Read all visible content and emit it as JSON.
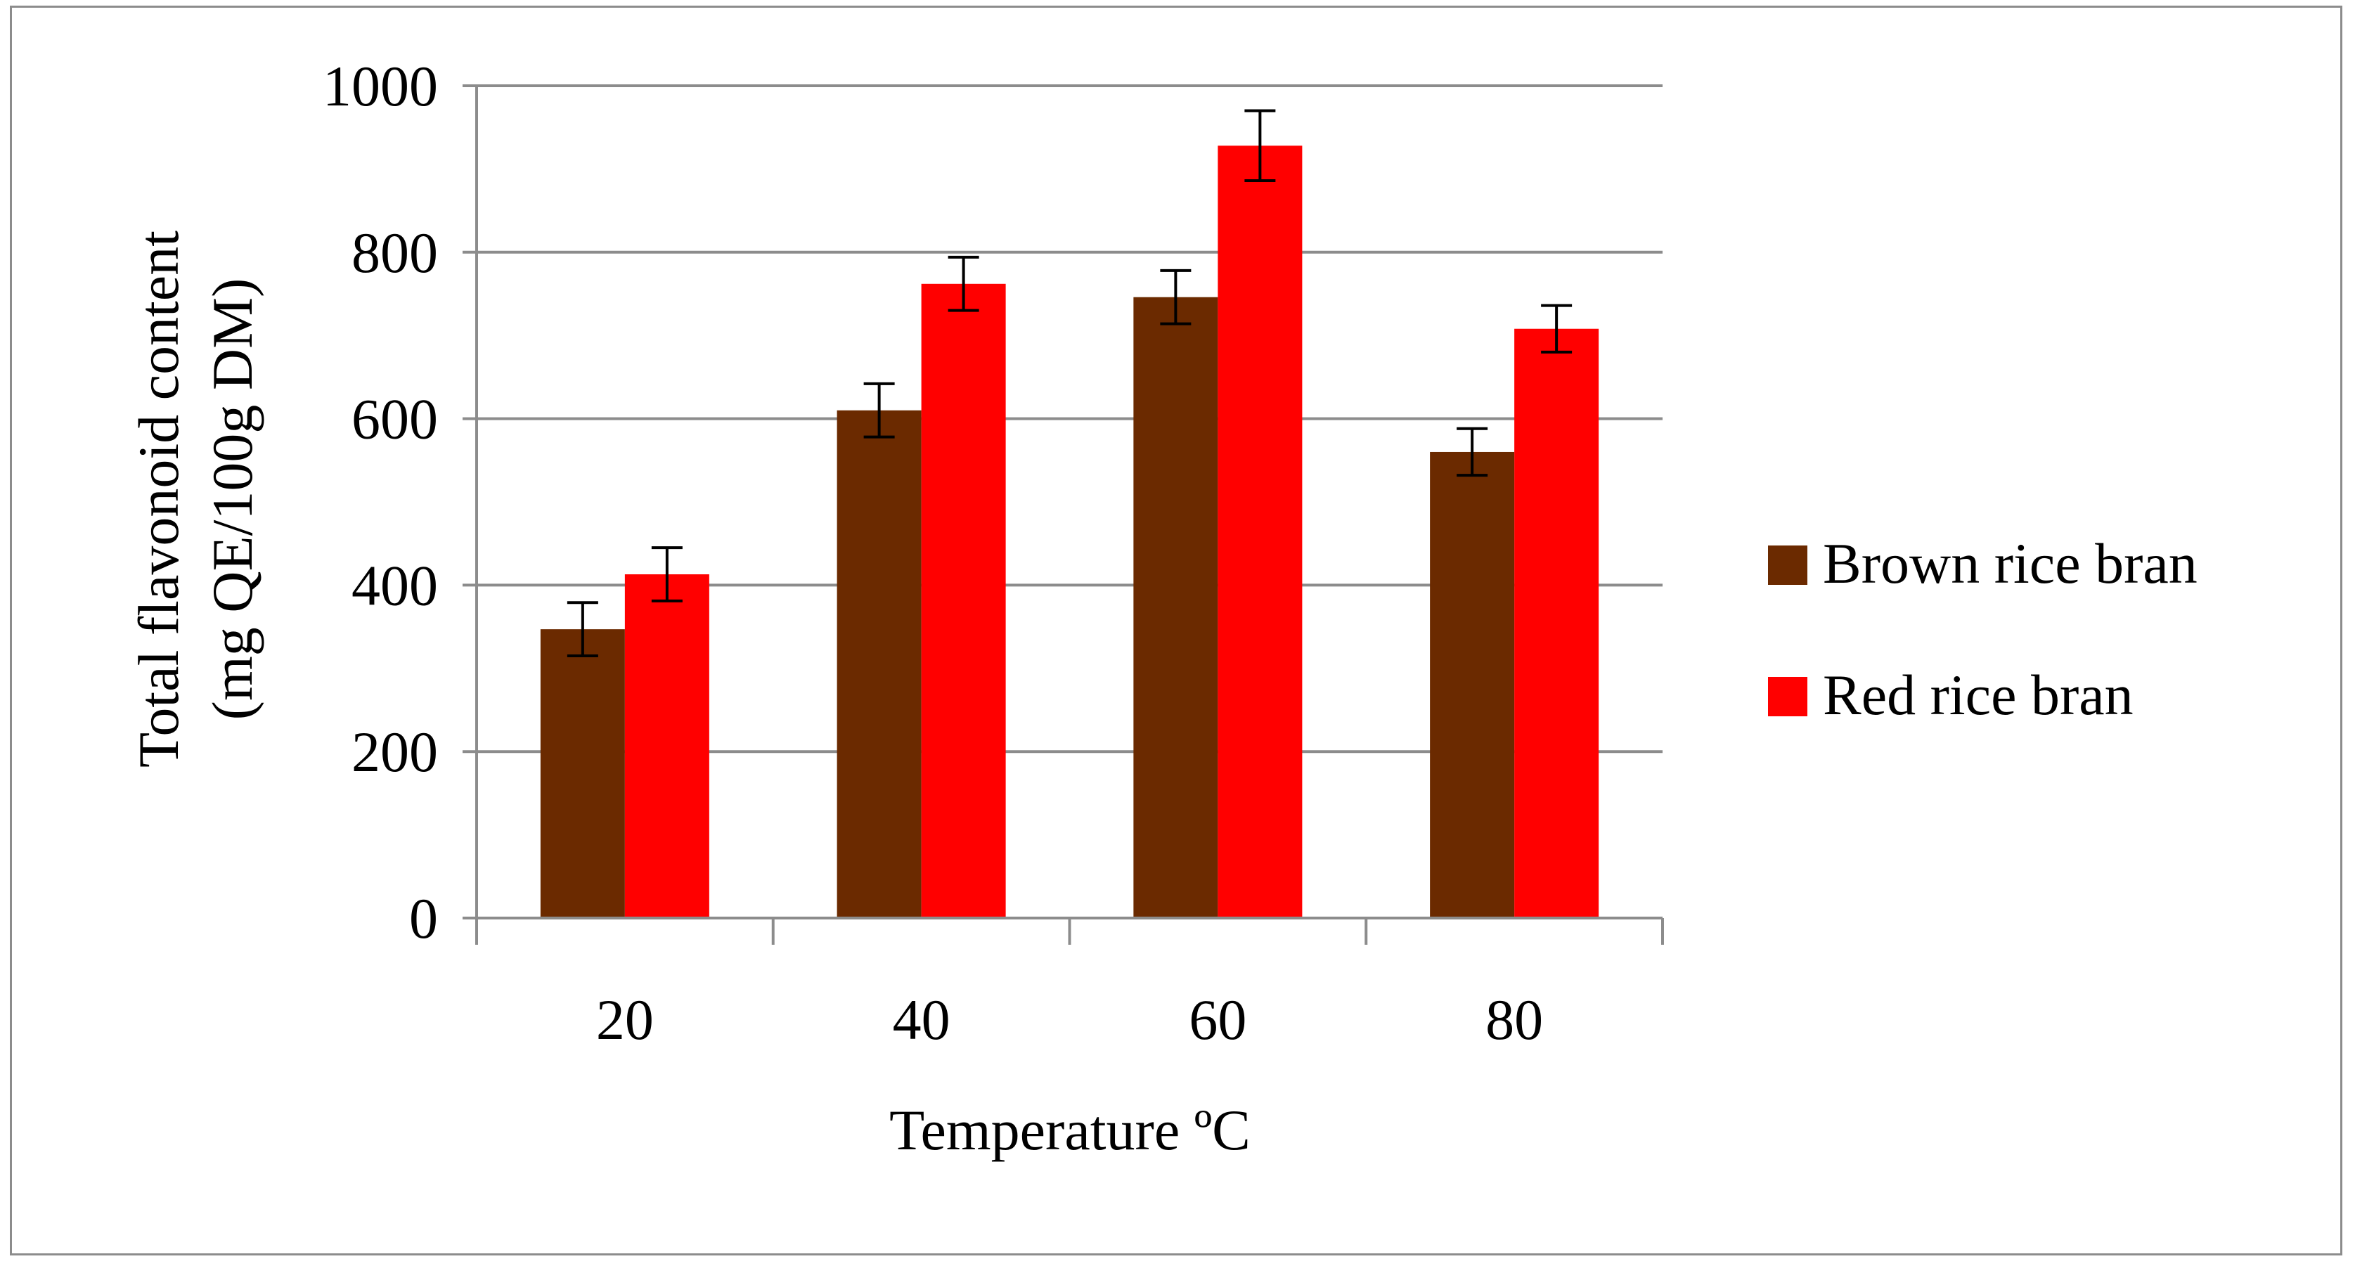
{
  "chart_data": {
    "type": "bar",
    "title": "",
    "xlabel": "Temperature ºC",
    "ylabel_lines": [
      "Total flavonoid content",
      "(mg QE/100g DM)"
    ],
    "categories": [
      "20",
      "40",
      "60",
      "80"
    ],
    "series": [
      {
        "name": "Brown rice bran",
        "color": "#6b2a00",
        "values": [
          347,
          610,
          746,
          560
        ],
        "errors": [
          32,
          32,
          32,
          28
        ]
      },
      {
        "name": "Red rice bran",
        "color": "#ff0000",
        "values": [
          413,
          762,
          928,
          708
        ],
        "errors": [
          32,
          32,
          42,
          28
        ]
      }
    ],
    "ylim": [
      0,
      1000
    ],
    "yticks": [
      0,
      200,
      400,
      600,
      800,
      1000
    ],
    "grid": true,
    "legend_position": "right"
  }
}
